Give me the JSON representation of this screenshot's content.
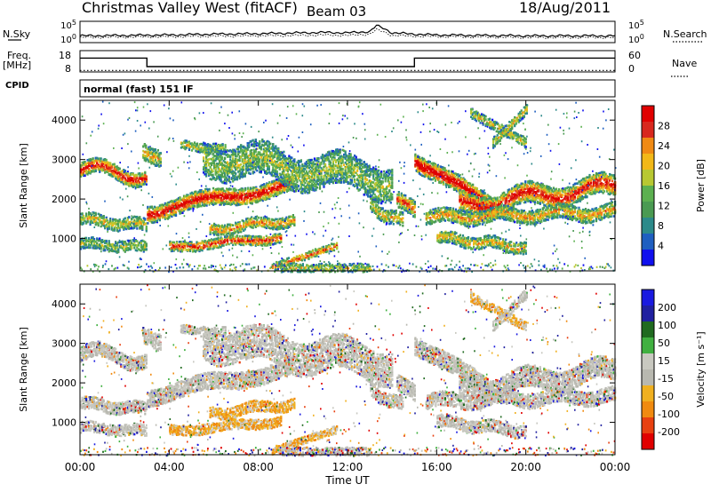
{
  "header": {
    "title": "Christmas Valley West (fitACF)",
    "beam": "Beam 03",
    "date": "18/Aug/2011"
  },
  "labels": {
    "nsky": "N.Sky",
    "nsearch": "N.Search",
    "freq_line1": "Freq.",
    "freq_line2": "[MHz]",
    "nave": "Nave",
    "cpid": "CPID",
    "mode": "normal (fast) 151 IF"
  },
  "colors": {
    "power_scale": [
      "#1010ee",
      "#1f5fc0",
      "#2c8a8a",
      "#4a9a52",
      "#5cb050",
      "#b8c832",
      "#f2b818",
      "#f08a14",
      "#e8581a",
      "#d8281e",
      "#e00000"
    ],
    "velocity_scale": [
      "#1a1ae0",
      "#2020a0",
      "#206a20",
      "#40b040",
      "#c8c8c0",
      "#b8b8b0",
      "#f0b020",
      "#f08a10",
      "#e84010",
      "#e00000"
    ]
  },
  "chart_data": [
    {
      "type": "line",
      "name": "noise",
      "y_ticks": [
        "10^5",
        "10^0"
      ],
      "y_ticks_right": [
        "10^5",
        "10^0"
      ],
      "x": [
        0,
        2,
        4,
        6,
        8,
        10,
        11,
        12,
        13,
        13.3,
        13.6,
        14,
        15,
        16,
        18,
        20,
        22,
        24
      ],
      "series": [
        {
          "name": "N.Sky",
          "values": [
            1.6,
            1.7,
            1.8,
            2.0,
            2.1,
            2.3,
            2.4,
            2.3,
            2.6,
            4.0,
            3.4,
            2.3,
            2.0,
            1.8,
            1.7,
            1.6,
            1.6,
            1.6
          ]
        },
        {
          "name": "N.Search",
          "values": [
            1.2,
            1.3,
            1.4,
            1.5,
            1.6,
            1.7,
            1.8,
            1.7,
            2.0,
            3.0,
            2.6,
            1.7,
            1.5,
            1.4,
            1.3,
            1.2,
            1.2,
            1.2
          ]
        }
      ]
    },
    {
      "type": "line",
      "name": "frequency",
      "y_ticks": [
        "18",
        "8"
      ],
      "y_ticks_right": [
        "60",
        "0"
      ],
      "x": [
        0,
        3.0,
        3.0,
        15.0,
        15.0,
        24
      ],
      "series": [
        {
          "name": "Freq.",
          "values": [
            14.5,
            14.5,
            10.5,
            10.5,
            14.5,
            14.5
          ]
        },
        {
          "name": "Nave",
          "values": [
            8.7,
            8.7,
            8.7,
            8.7,
            8.7,
            8.7
          ]
        }
      ]
    },
    {
      "type": "heatmap",
      "name": "power",
      "y_ticks": [
        1000,
        2000,
        3000,
        4000
      ],
      "ylabel": "Slant Range [km]",
      "colorbar_label": "Power [dB]",
      "colorbar_ticks": [
        4,
        8,
        12,
        16,
        20,
        24,
        28
      ],
      "ylim": [
        180,
        4500
      ]
    },
    {
      "type": "heatmap",
      "name": "velocity",
      "y_ticks": [
        1000,
        2000,
        3000,
        4000
      ],
      "ylabel": "Slant Range [km]",
      "colorbar_label": "Velocity [m s⁻¹]",
      "colorbar_ticks": [
        200,
        100,
        50,
        15,
        -15,
        -50,
        -100,
        -200
      ],
      "ylim": [
        180,
        4500
      ]
    }
  ],
  "x_axis": {
    "label": "Time UT",
    "ticks": [
      "00:00",
      "04:00",
      "08:00",
      "12:00",
      "16:00",
      "20:00",
      "00:00"
    ],
    "xlim": [
      0,
      24
    ]
  }
}
